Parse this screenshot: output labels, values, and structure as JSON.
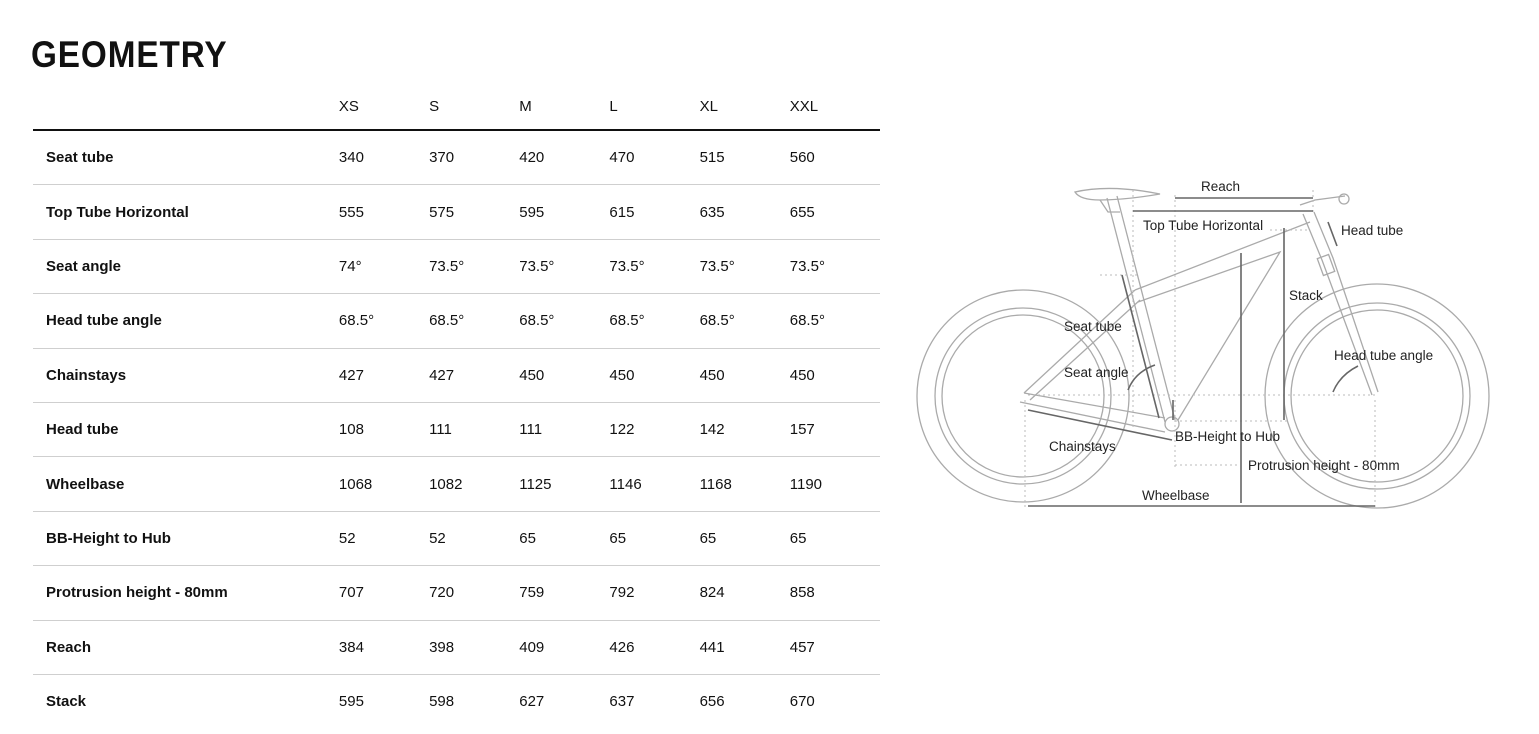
{
  "title": "GEOMETRY",
  "sizes": [
    "XS",
    "S",
    "M",
    "L",
    "XL",
    "XXL"
  ],
  "rows": [
    {
      "label": "Seat tube",
      "values": [
        "340",
        "370",
        "420",
        "470",
        "515",
        "560"
      ]
    },
    {
      "label": "Top Tube Horizontal",
      "values": [
        "555",
        "575",
        "595",
        "615",
        "635",
        "655"
      ]
    },
    {
      "label": "Seat angle",
      "values": [
        "74°",
        "73.5°",
        "73.5°",
        "73.5°",
        "73.5°",
        "73.5°"
      ]
    },
    {
      "label": "Head tube angle",
      "values": [
        "68.5°",
        "68.5°",
        "68.5°",
        "68.5°",
        "68.5°",
        "68.5°"
      ]
    },
    {
      "label": "Chainstays",
      "values": [
        "427",
        "427",
        "450",
        "450",
        "450",
        "450"
      ]
    },
    {
      "label": "Head tube",
      "values": [
        "108",
        "111",
        "111",
        "122",
        "142",
        "157"
      ]
    },
    {
      "label": "Wheelbase",
      "values": [
        "1068",
        "1082",
        "1125",
        "1146",
        "1168",
        "1190"
      ]
    },
    {
      "label": "BB-Height to Hub",
      "values": [
        "52",
        "52",
        "65",
        "65",
        "65",
        "65"
      ]
    },
    {
      "label": "Protrusion height - 80mm",
      "values": [
        "707",
        "720",
        "759",
        "792",
        "824",
        "858"
      ]
    },
    {
      "label": "Reach",
      "values": [
        "384",
        "398",
        "409",
        "426",
        "441",
        "457"
      ]
    },
    {
      "label": "Stack",
      "values": [
        "595",
        "598",
        "627",
        "637",
        "656",
        "670"
      ]
    }
  ],
  "diagram": {
    "reach": "Reach",
    "top_tube": "Top Tube Horizontal",
    "head_tube": "Head tube",
    "stack": "Stack",
    "seat_tube": "Seat tube",
    "head_tube_angle": "Head tube angle",
    "seat_angle": "Seat angle",
    "bb_height": "BB-Height to Hub",
    "chainstays": "Chainstays",
    "protrusion": "Protrusion height - 80mm",
    "wheelbase": "Wheelbase"
  }
}
